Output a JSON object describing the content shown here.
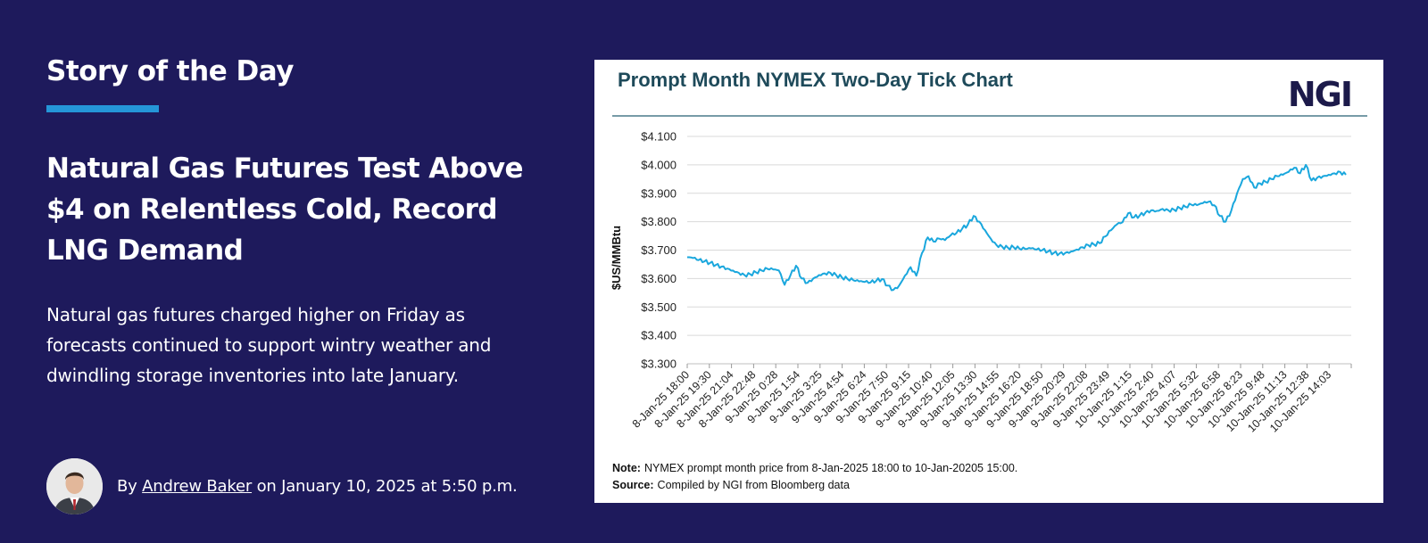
{
  "section": {
    "title": "Story of the Day"
  },
  "article": {
    "headline": "Natural Gas Futures Test Above $4 on Relentless Cold, Record LNG Demand",
    "summary": "Natural gas futures charged higher on Friday as forecasts continued to support wintry weather and dwindling storage inventories into late January.",
    "byline": {
      "prefix": "By",
      "author": "Andrew Baker",
      "date_text": "on January 10, 2025 at 5:50 p.m."
    }
  },
  "colors": {
    "background": "#1e1a5c",
    "accent": "#2596d8",
    "chart_line": "#1aa7dd",
    "chart_title": "#1e4a5a",
    "logo": "#1c1a4a"
  },
  "chart_data": {
    "type": "line",
    "title": "Prompt Month NYMEX Two-Day Tick Chart",
    "logo_text": "NGI",
    "ylabel": "$US/MMBtu",
    "ylim": [
      3.3,
      4.1
    ],
    "y_ticks": [
      "$4.100",
      "$4.000",
      "$3.900",
      "$3.800",
      "$3.700",
      "$3.600",
      "$3.500",
      "$3.400",
      "$3.300"
    ],
    "grid": true,
    "x_tick_labels": [
      "8-Jan-25 18:00",
      "8-Jan-25 19:30",
      "8-Jan-25 21:04",
      "8-Jan-25 22:48",
      "9-Jan-25 0:28",
      "9-Jan-25 1:54",
      "9-Jan-25 3:25",
      "9-Jan-25 4:54",
      "9-Jan-25 6:24",
      "9-Jan-25 7:50",
      "9-Jan-25 9:15",
      "9-Jan-25 10:40",
      "9-Jan-25 12:05",
      "9-Jan-25 13:30",
      "9-Jan-25 14:55",
      "9-Jan-25 16:20",
      "9-Jan-25 18:50",
      "9-Jan-25 20:29",
      "9-Jan-25 22:08",
      "9-Jan-25 23:49",
      "10-Jan-25 1:15",
      "10-Jan-25 2:40",
      "10-Jan-25 4:07",
      "10-Jan-25 5:32",
      "10-Jan-25 6:58",
      "10-Jan-25 8:23",
      "10-Jan-25 9:48",
      "10-Jan-25 11:13",
      "10-Jan-25 12:38",
      "10-Jan-25 14:03"
    ],
    "series": [
      {
        "values": [
          3.675,
          3.672,
          3.665,
          3.66,
          3.655,
          3.648,
          3.642,
          3.635,
          3.628,
          3.62,
          3.612,
          3.615,
          3.622,
          3.628,
          3.634,
          3.632,
          3.628,
          3.578,
          3.61,
          3.645,
          3.6,
          3.585,
          3.6,
          3.612,
          3.618,
          3.62,
          3.612,
          3.604,
          3.598,
          3.594,
          3.59,
          3.588,
          3.586,
          3.592,
          3.598,
          3.575,
          3.56,
          3.575,
          3.61,
          3.64,
          3.61,
          3.69,
          3.745,
          3.73,
          3.74,
          3.735,
          3.752,
          3.76,
          3.775,
          3.79,
          3.82,
          3.8,
          3.77,
          3.74,
          3.718,
          3.712,
          3.708,
          3.71,
          3.705,
          3.704,
          3.706,
          3.702,
          3.7,
          3.695,
          3.69,
          3.688,
          3.69,
          3.695,
          3.702,
          3.71,
          3.718,
          3.72,
          3.724,
          3.748,
          3.77,
          3.79,
          3.798,
          3.83,
          3.815,
          3.822,
          3.832,
          3.84,
          3.838,
          3.845,
          3.84,
          3.842,
          3.848,
          3.852,
          3.86,
          3.858,
          3.865,
          3.87,
          3.858,
          3.82,
          3.8,
          3.84,
          3.9,
          3.95,
          3.96,
          3.92,
          3.935,
          3.94,
          3.95,
          3.96,
          3.965,
          3.975,
          3.99,
          3.97,
          4.0,
          3.945,
          3.955,
          3.96,
          3.965,
          3.97,
          3.975,
          3.965
        ]
      }
    ],
    "note_label": "Note:",
    "note_text": "NYMEX prompt month price from 8-Jan-2025  18:00 to 10-Jan-20205  15:00.",
    "source_label": "Source:",
    "source_text": "Compiled by NGI from Bloomberg data"
  }
}
